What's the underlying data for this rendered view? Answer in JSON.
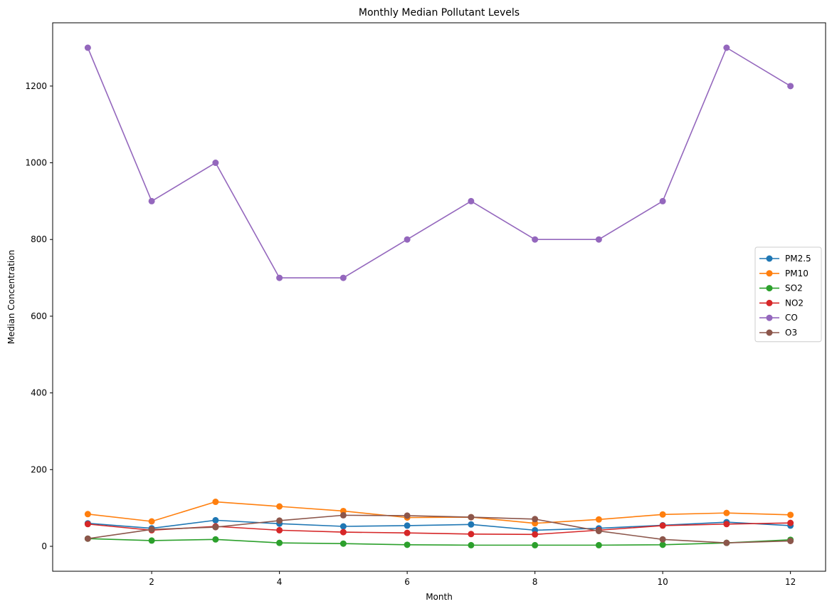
{
  "chart_data": {
    "type": "line",
    "title": "Monthly Median Pollutant Levels",
    "xlabel": "Month",
    "ylabel": "Median Concentration",
    "x": [
      1,
      2,
      3,
      4,
      5,
      6,
      7,
      8,
      9,
      10,
      11,
      12
    ],
    "xlim": [
      0.45,
      12.55
    ],
    "ylim": [
      -65,
      1365
    ],
    "xticks": [
      2,
      4,
      6,
      8,
      10,
      12
    ],
    "yticks": [
      0,
      200,
      400,
      600,
      800,
      1000,
      1200
    ],
    "grid": false,
    "legend_position": "center-right",
    "series": [
      {
        "name": "PM2.5",
        "color": "#1f77b4",
        "values": [
          60,
          47,
          68,
          59,
          52,
          54,
          57,
          42,
          47,
          55,
          63,
          54
        ]
      },
      {
        "name": "PM10",
        "color": "#ff7f0e",
        "values": [
          84,
          65,
          116,
          104,
          92,
          75,
          76,
          60,
          70,
          83,
          87,
          82
        ]
      },
      {
        "name": "SO2",
        "color": "#2ca02c",
        "values": [
          20,
          15,
          18,
          9,
          7,
          4,
          3,
          3,
          3,
          4,
          9,
          17
        ]
      },
      {
        "name": "NO2",
        "color": "#d62728",
        "values": [
          58,
          42,
          52,
          42,
          37,
          35,
          32,
          31,
          42,
          54,
          58,
          61
        ]
      },
      {
        "name": "CO",
        "color": "#9467bd",
        "values": [
          1300,
          900,
          1000,
          700,
          700,
          800,
          900,
          800,
          800,
          900,
          1300,
          1200
        ]
      },
      {
        "name": "O3",
        "color": "#8c564b",
        "values": [
          20,
          44,
          50,
          67,
          81,
          80,
          76,
          71,
          40,
          18,
          9,
          14
        ]
      }
    ]
  }
}
